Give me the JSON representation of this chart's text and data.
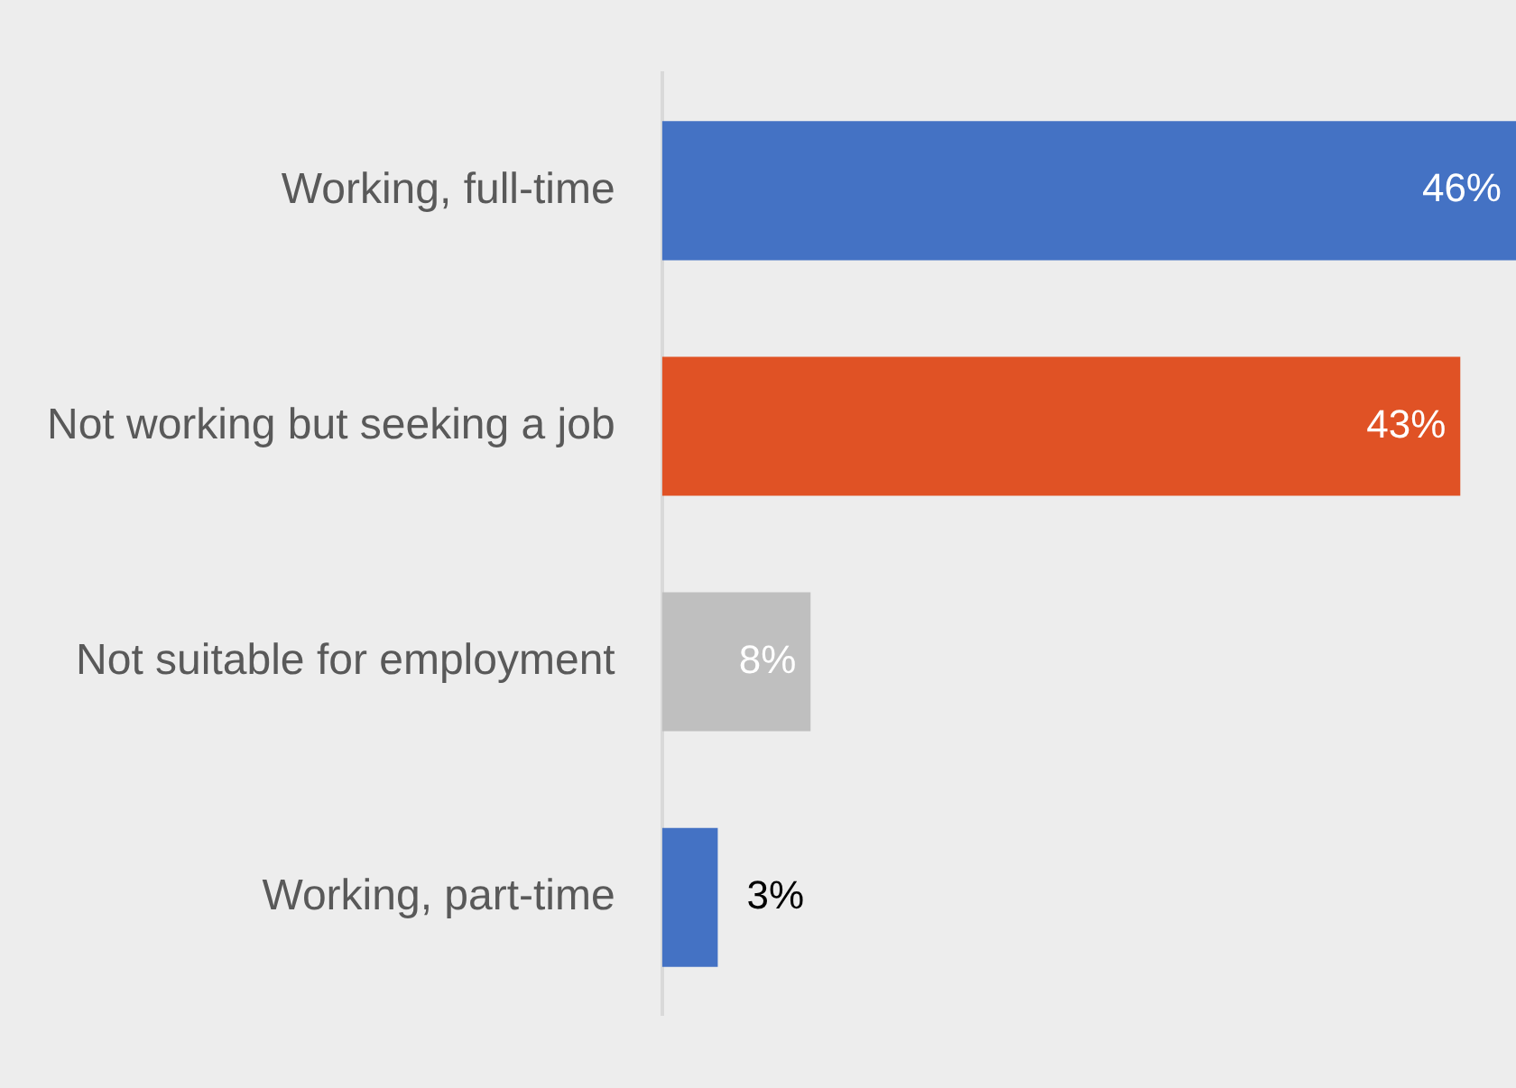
{
  "chart_data": {
    "type": "bar",
    "orientation": "horizontal",
    "categories": [
      "Working, full-time",
      "Not working but seeking a job",
      "Not suitable for employment",
      "Working, part-time"
    ],
    "values": [
      46,
      43,
      8,
      3
    ],
    "colors": [
      "#4472c4",
      "#e05225",
      "#bfbfbf",
      "#4472c4"
    ],
    "data_labels": true,
    "value_labels": [
      "46%",
      "43%",
      "8%",
      "3%"
    ],
    "grid": false,
    "legend": false
  }
}
